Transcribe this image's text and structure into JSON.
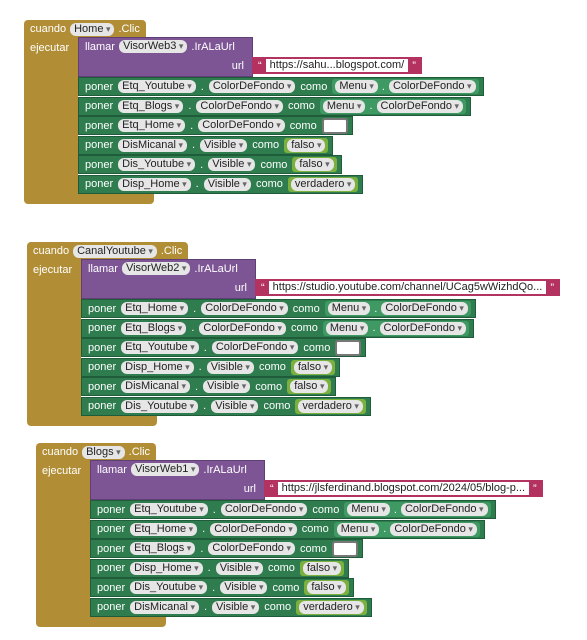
{
  "events": [
    {
      "event": "cuando",
      "component": "Home",
      "handler": ".Clic",
      "do": "ejecutar",
      "call": {
        "keyword": "llamar",
        "component": "VisorWeb3",
        "method": ".IrALaUrl",
        "param": "url",
        "value": "https://sahu...blogspot.com/"
      },
      "setters": [
        {
          "keyword": "poner",
          "component": "Etq_Youtube",
          "dot": ".",
          "property": "ColorDeFondo",
          "to": "como",
          "value": {
            "component": "Menu",
            "dot": ".",
            "property": "ColorDeFondo"
          }
        },
        {
          "keyword": "poner",
          "component": "Etq_Blogs",
          "dot": ".",
          "property": "ColorDeFondo",
          "to": "como",
          "value": {
            "component": "Menu",
            "dot": ".",
            "property": "ColorDeFondo"
          }
        },
        {
          "keyword": "poner",
          "component": "Etq_Home",
          "dot": ".",
          "property": "ColorDeFondo",
          "to": "como",
          "value": {
            "color": "#ffffff"
          }
        },
        {
          "keyword": "poner",
          "component": "DisMicanal",
          "dot": ".",
          "property": "Visible",
          "to": "como",
          "value": {
            "boolean": "falso"
          }
        },
        {
          "keyword": "poner",
          "component": "Dis_Youtube",
          "dot": ".",
          "property": "Visible",
          "to": "como",
          "value": {
            "boolean": "falso"
          }
        },
        {
          "keyword": "poner",
          "component": "Disp_Home",
          "dot": ".",
          "property": "Visible",
          "to": "como",
          "value": {
            "boolean": "verdadero"
          }
        }
      ]
    },
    {
      "event": "cuando",
      "component": "CanalYoutube",
      "handler": ".Clic",
      "do": "ejecutar",
      "call": {
        "keyword": "llamar",
        "component": "VisorWeb2",
        "method": ".IrALaUrl",
        "param": "url",
        "value": "https://studio.youtube.com/channel/UCag5wWizhdQo..."
      },
      "setters": [
        {
          "keyword": "poner",
          "component": "Etq_Home",
          "dot": ".",
          "property": "ColorDeFondo",
          "to": "como",
          "value": {
            "component": "Menu",
            "dot": ".",
            "property": "ColorDeFondo"
          }
        },
        {
          "keyword": "poner",
          "component": "Etq_Blogs",
          "dot": ".",
          "property": "ColorDeFondo",
          "to": "como",
          "value": {
            "component": "Menu",
            "dot": ".",
            "property": "ColorDeFondo"
          }
        },
        {
          "keyword": "poner",
          "component": "Etq_Youtube",
          "dot": ".",
          "property": "ColorDeFondo",
          "to": "como",
          "value": {
            "color": "#ffffff"
          }
        },
        {
          "keyword": "poner",
          "component": "Disp_Home",
          "dot": ".",
          "property": "Visible",
          "to": "como",
          "value": {
            "boolean": "falso"
          }
        },
        {
          "keyword": "poner",
          "component": "DisMicanal",
          "dot": ".",
          "property": "Visible",
          "to": "como",
          "value": {
            "boolean": "falso"
          }
        },
        {
          "keyword": "poner",
          "component": "Dis_Youtube",
          "dot": ".",
          "property": "Visible",
          "to": "como",
          "value": {
            "boolean": "verdadero"
          }
        }
      ]
    },
    {
      "event": "cuando",
      "component": "Blogs",
      "handler": ".Clic",
      "do": "ejecutar",
      "call": {
        "keyword": "llamar",
        "component": "VisorWeb1",
        "method": ".IrALaUrl",
        "param": "url",
        "value": "https://jlsferdinand.blogspot.com/2024/05/blog-p..."
      },
      "setters": [
        {
          "keyword": "poner",
          "component": "Etq_Youtube",
          "dot": ".",
          "property": "ColorDeFondo",
          "to": "como",
          "value": {
            "component": "Menu",
            "dot": ".",
            "property": "ColorDeFondo"
          }
        },
        {
          "keyword": "poner",
          "component": "Etq_Home",
          "dot": ".",
          "property": "ColorDeFondo",
          "to": "como",
          "value": {
            "component": "Menu",
            "dot": ".",
            "property": "ColorDeFondo"
          }
        },
        {
          "keyword": "poner",
          "component": "Etq_Blogs",
          "dot": ".",
          "property": "ColorDeFondo",
          "to": "como",
          "value": {
            "color": "#ffffff"
          }
        },
        {
          "keyword": "poner",
          "component": "Disp_Home",
          "dot": ".",
          "property": "Visible",
          "to": "como",
          "value": {
            "boolean": "falso"
          }
        },
        {
          "keyword": "poner",
          "component": "Dis_Youtube",
          "dot": ".",
          "property": "Visible",
          "to": "como",
          "value": {
            "boolean": "falso"
          }
        },
        {
          "keyword": "poner",
          "component": "DisMicanal",
          "dot": ".",
          "property": "Visible",
          "to": "como",
          "value": {
            "boolean": "verdadero"
          }
        }
      ]
    }
  ]
}
